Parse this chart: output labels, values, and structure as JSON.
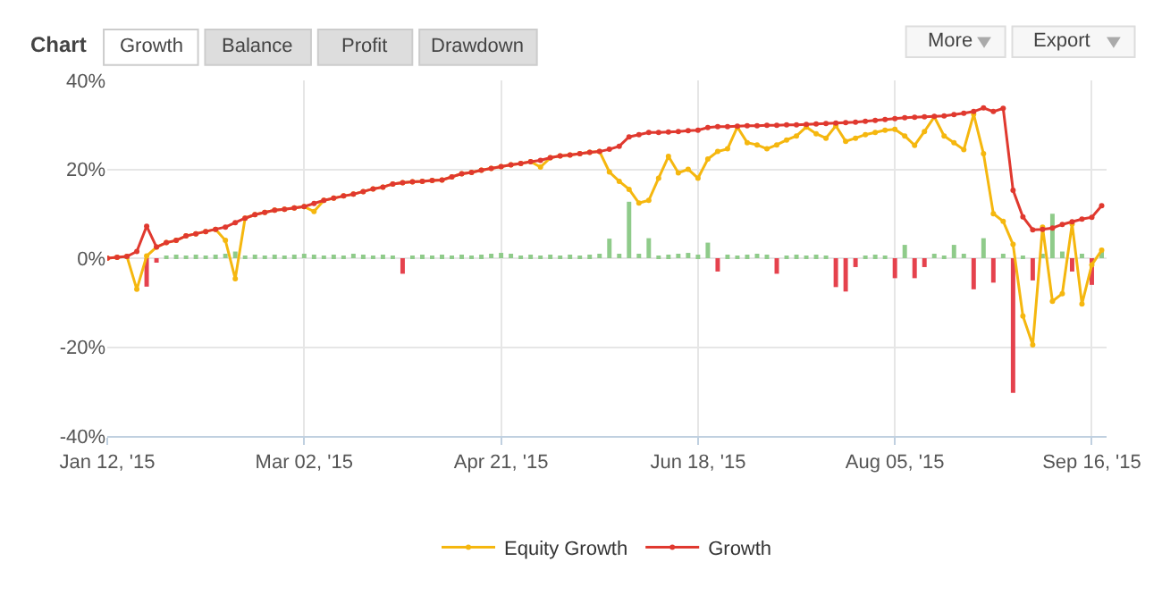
{
  "chart_data": {
    "type": "line",
    "title": "Chart",
    "annotations": [
      "Growth",
      "Balance",
      "Profit",
      "Drawdown",
      "More",
      "Export"
    ],
    "categories": [
      "Jan 12, '15",
      null,
      null,
      null,
      null,
      null,
      null,
      null,
      null,
      null,
      null,
      null,
      null,
      null,
      null,
      null,
      null,
      null,
      null,
      null,
      "Mar 02, '15",
      null,
      null,
      null,
      null,
      null,
      null,
      null,
      null,
      null,
      null,
      null,
      null,
      null,
      null,
      null,
      null,
      null,
      null,
      null,
      "Apr 21, '15",
      null,
      null,
      null,
      null,
      null,
      null,
      null,
      null,
      null,
      null,
      null,
      null,
      null,
      null,
      null,
      null,
      null,
      null,
      null,
      "Jun 18, '15",
      null,
      null,
      null,
      null,
      null,
      null,
      null,
      null,
      null,
      null,
      null,
      null,
      null,
      null,
      null,
      null,
      null,
      null,
      null,
      "Aug 05, '15",
      null,
      null,
      null,
      null,
      null,
      null,
      null,
      null,
      null,
      null,
      null,
      null,
      null,
      null,
      null,
      null,
      null,
      null,
      null,
      "Sep 16, '15",
      null
    ],
    "series": [
      {
        "type": "bar",
        "colors": [
          "#8fcb8a",
          "#8fcb8a",
          "#8fcb8a",
          "#8fcb8a",
          "#e5424d",
          "#e5424d",
          "#8fcb8a",
          "#8fcb8a",
          "#8fcb8a",
          "#8fcb8a",
          "#8fcb8a",
          "#8fcb8a",
          "#8fcb8a",
          "#8fcb8a",
          "#8fcb8a",
          "#8fcb8a",
          "#8fcb8a",
          "#8fcb8a",
          "#8fcb8a",
          "#8fcb8a",
          "#8fcb8a",
          "#8fcb8a",
          "#8fcb8a",
          "#8fcb8a",
          "#8fcb8a",
          "#8fcb8a",
          "#8fcb8a",
          "#8fcb8a",
          "#8fcb8a",
          "#8fcb8a",
          "#e5424d",
          "#8fcb8a",
          "#8fcb8a",
          "#8fcb8a",
          "#8fcb8a",
          "#8fcb8a",
          "#8fcb8a",
          "#8fcb8a",
          "#8fcb8a",
          "#8fcb8a",
          "#8fcb8a",
          "#8fcb8a",
          "#8fcb8a",
          "#8fcb8a",
          "#8fcb8a",
          "#8fcb8a",
          "#8fcb8a",
          "#8fcb8a",
          "#8fcb8a",
          "#8fcb8a",
          "#8fcb8a",
          "#8fcb8a",
          "#8fcb8a",
          "#8fcb8a",
          "#8fcb8a",
          "#8fcb8a",
          "#8fcb8a",
          "#8fcb8a",
          "#8fcb8a",
          "#8fcb8a",
          "#8fcb8a",
          "#8fcb8a",
          "#e5424d",
          "#8fcb8a",
          "#8fcb8a",
          "#8fcb8a",
          "#8fcb8a",
          "#8fcb8a",
          "#e5424d",
          "#8fcb8a",
          "#8fcb8a",
          "#8fcb8a",
          "#8fcb8a",
          "#8fcb8a",
          "#e5424d",
          "#e5424d",
          "#e5424d",
          "#8fcb8a",
          "#8fcb8a",
          "#8fcb8a",
          "#e5424d",
          "#8fcb8a",
          "#e5424d",
          "#e5424d",
          "#8fcb8a",
          "#8fcb8a",
          "#8fcb8a",
          "#8fcb8a",
          "#e5424d",
          "#8fcb8a",
          "#e5424d",
          "#8fcb8a",
          "#e5424d",
          "#8fcb8a",
          "#e5424d",
          "#8fcb8a",
          "#8fcb8a",
          "#8fcb8a",
          "#e5424d",
          "#8fcb8a",
          "#e5424d",
          "#8fcb8a"
        ],
        "values": [
          null,
          0.3,
          0.5,
          null,
          -6.4,
          -1,
          0.5,
          0.8,
          0.3,
          0.8,
          0.5,
          0.8,
          1,
          1.5,
          0.5,
          0.8,
          0.5,
          0.8,
          0.5,
          0.8,
          1,
          0.8,
          0.5,
          0.8,
          0.5,
          1,
          0.8,
          0.5,
          0.8,
          0.5,
          -3.5,
          0.5,
          0.8,
          0.5,
          0.8,
          0.5,
          0.8,
          0.5,
          0.8,
          1,
          1.2,
          1,
          0.5,
          0.8,
          0.5,
          0.8,
          0.5,
          0.8,
          0.5,
          0.8,
          1,
          4.4,
          1,
          12.7,
          1,
          4.5,
          0.5,
          0.8,
          1,
          1.2,
          0.8,
          3.5,
          -3,
          0.8,
          0.5,
          0.8,
          1,
          0.8,
          -3.5,
          0.5,
          0.8,
          0.5,
          0.8,
          0.5,
          -6.5,
          -7.5,
          -2,
          0.5,
          0.8,
          0.5,
          -4.5,
          3,
          -4.5,
          -2,
          1,
          0.5,
          3,
          1,
          -7,
          4.5,
          -5.5,
          1,
          -30.3,
          0.5,
          -5,
          1,
          10,
          1.5,
          -3,
          1,
          -6,
          1.5
        ]
      },
      {
        "name": "Equity Growth",
        "color": "#f5b70f",
        "values": [
          0,
          0.2,
          0.4,
          -7,
          0.5,
          2.5,
          3.5,
          4,
          5,
          5.5,
          6,
          6.5,
          4,
          -4.6,
          9,
          9.8,
          10.3,
          10.8,
          11,
          11.3,
          11.6,
          10.5,
          13,
          13.5,
          14,
          14.4,
          15,
          15.6,
          16,
          16.7,
          17,
          17.2,
          17.3,
          17.5,
          17.6,
          18.3,
          19,
          19.3,
          19.8,
          20.2,
          20.6,
          21,
          21.3,
          21.7,
          20.5,
          22.6,
          23,
          23.2,
          23.5,
          23.8,
          24,
          19.4,
          17.3,
          15.5,
          12.4,
          13,
          18,
          22.9,
          19.2,
          20,
          18,
          22.3,
          24,
          24.6,
          29.5,
          26,
          25.5,
          24.6,
          25.5,
          26.6,
          27.5,
          29.5,
          28,
          27,
          29.8,
          26.3,
          27,
          27.8,
          28.3,
          28.8,
          29,
          27.5,
          25.4,
          28.5,
          31.8,
          27.5,
          26,
          24.4,
          32.4,
          23.5,
          10,
          8.3,
          3.1,
          -13,
          -19.5,
          7,
          -9.7,
          -8,
          7.7,
          -10.3,
          -1.5,
          1.8
        ]
      },
      {
        "name": "Growth",
        "color": "#e0392f",
        "values": [
          0,
          0.2,
          0.4,
          1.5,
          7.2,
          2.5,
          3.5,
          4,
          5,
          5.5,
          6,
          6.5,
          7,
          8,
          9,
          9.8,
          10.3,
          10.8,
          11,
          11.3,
          11.6,
          12.3,
          13,
          13.5,
          14,
          14.4,
          15,
          15.6,
          16,
          16.7,
          17,
          17.2,
          17.3,
          17.5,
          17.6,
          18.3,
          19,
          19.3,
          19.8,
          20.2,
          20.6,
          21,
          21.3,
          21.7,
          22,
          22.6,
          23,
          23.2,
          23.5,
          23.8,
          24,
          24.5,
          25.2,
          27.3,
          27.8,
          28.3,
          28.3,
          28.4,
          28.5,
          28.7,
          28.8,
          29.4,
          29.6,
          29.6,
          29.7,
          29.8,
          29.8,
          29.9,
          29.9,
          30,
          30,
          30.1,
          30.2,
          30.3,
          30.4,
          30.5,
          30.6,
          30.8,
          31,
          31.2,
          31.4,
          31.6,
          31.7,
          31.8,
          31.9,
          32,
          32.3,
          32.6,
          33,
          33.8,
          33,
          33.7,
          15.3,
          9.3,
          6.4,
          6.5,
          6.8,
          7.6,
          8.2,
          8.8,
          9.2,
          11.8
        ]
      }
    ],
    "ylim": [
      -40,
      40
    ],
    "yticks": [
      {
        "value": -40,
        "label": "-40%"
      },
      {
        "value": -20,
        "label": "-20%"
      },
      {
        "value": 0,
        "label": "0%"
      },
      {
        "value": 20,
        "label": "20%"
      },
      {
        "value": 40,
        "label": "40%"
      }
    ],
    "grid": true,
    "legend": "bottom",
    "marker": "circle",
    "line_style": "solid"
  }
}
